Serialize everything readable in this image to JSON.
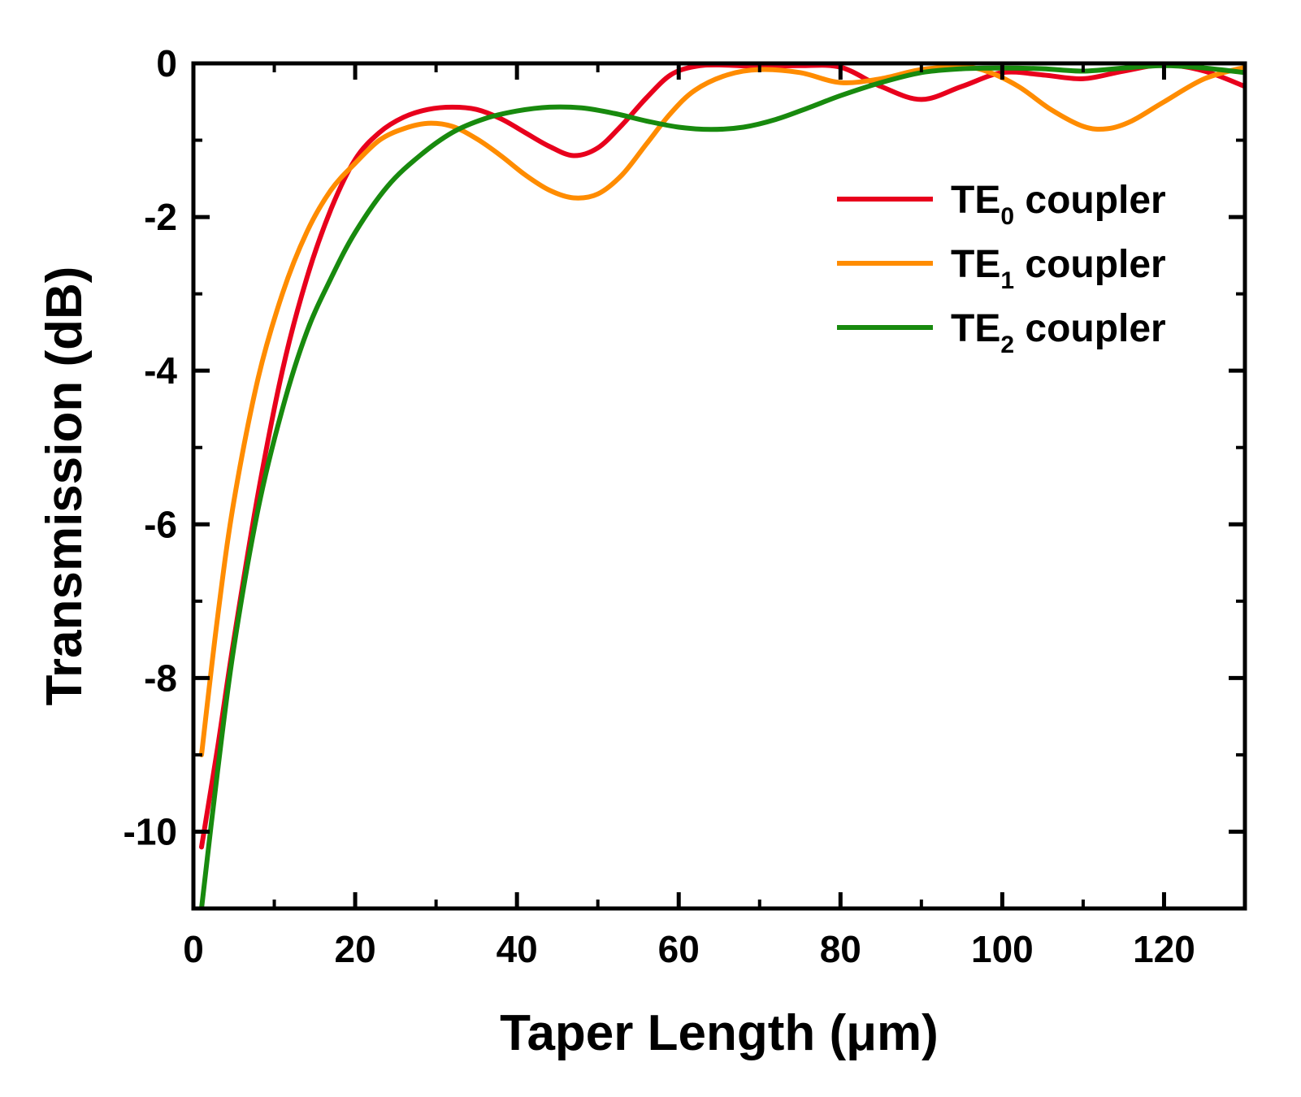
{
  "chart_data": {
    "type": "line",
    "xlabel": "Taper Length (μm)",
    "ylabel": "Transmission (dB)",
    "xlim": [
      0,
      130
    ],
    "ylim": [
      -11,
      0
    ],
    "xticks": [
      0,
      20,
      40,
      60,
      80,
      100,
      120
    ],
    "yticks": [
      0,
      -2,
      -4,
      -6,
      -8,
      -10
    ],
    "xtick_labels": [
      "0",
      "20",
      "40",
      "60",
      "80",
      "100",
      "120"
    ],
    "ytick_labels": [
      "0",
      "-2",
      "-4",
      "-6",
      "-8",
      "-10"
    ],
    "grid": false,
    "legend_position": "top-right",
    "series": [
      {
        "name": "TE0 coupler",
        "label_main": "TE",
        "label_sub": "0",
        "label_rest": " coupler",
        "color": "#e8001c",
        "x": [
          1,
          3,
          5,
          8,
          11,
          14,
          17,
          20,
          23,
          26,
          29,
          32,
          35,
          38,
          41,
          44,
          47,
          50,
          53,
          56,
          59,
          62,
          65,
          70,
          75,
          80,
          85,
          90,
          95,
          100,
          105,
          110,
          115,
          120,
          125,
          130
        ],
        "y": [
          -10.2,
          -8.9,
          -7.5,
          -5.6,
          -4.0,
          -2.8,
          -1.9,
          -1.25,
          -0.9,
          -0.7,
          -0.6,
          -0.57,
          -0.6,
          -0.72,
          -0.9,
          -1.08,
          -1.2,
          -1.1,
          -0.8,
          -0.45,
          -0.15,
          -0.04,
          -0.02,
          -0.04,
          -0.03,
          -0.05,
          -0.3,
          -0.47,
          -0.3,
          -0.12,
          -0.15,
          -0.2,
          -0.1,
          -0.02,
          -0.1,
          -0.3
        ]
      },
      {
        "name": "TE1 coupler",
        "label_main": "TE",
        "label_sub": "1",
        "label_rest": " coupler",
        "color": "#ff8c00",
        "x": [
          1,
          3,
          5,
          8,
          11,
          14,
          17,
          20,
          23,
          26,
          29,
          32,
          35,
          38,
          41,
          44,
          47,
          50,
          53,
          56,
          59,
          62,
          66,
          70,
          75,
          80,
          85,
          90,
          95,
          98,
          102,
          106,
          110,
          113,
          116,
          120,
          125,
          130
        ],
        "y": [
          -9.0,
          -7.2,
          -5.7,
          -4.1,
          -3.0,
          -2.2,
          -1.65,
          -1.3,
          -1.0,
          -0.85,
          -0.78,
          -0.82,
          -0.98,
          -1.2,
          -1.45,
          -1.65,
          -1.75,
          -1.7,
          -1.45,
          -1.05,
          -0.65,
          -0.35,
          -0.15,
          -0.08,
          -0.12,
          -0.25,
          -0.2,
          -0.08,
          -0.05,
          -0.1,
          -0.3,
          -0.6,
          -0.82,
          -0.85,
          -0.75,
          -0.5,
          -0.2,
          -0.05
        ]
      },
      {
        "name": "TE2 coupler",
        "label_main": "TE",
        "label_sub": "2",
        "label_rest": " coupler",
        "color": "#188a0e",
        "x": [
          1,
          3,
          5,
          8,
          11,
          14,
          17,
          20,
          24,
          28,
          32,
          36,
          40,
          44,
          48,
          52,
          56,
          60,
          64,
          68,
          72,
          76,
          80,
          85,
          90,
          95,
          100,
          105,
          110,
          115,
          120,
          125,
          130
        ],
        "y": [
          -11.0,
          -9.2,
          -7.6,
          -5.8,
          -4.5,
          -3.5,
          -2.8,
          -2.2,
          -1.6,
          -1.2,
          -0.9,
          -0.72,
          -0.62,
          -0.57,
          -0.58,
          -0.65,
          -0.75,
          -0.83,
          -0.86,
          -0.83,
          -0.73,
          -0.58,
          -0.42,
          -0.25,
          -0.12,
          -0.07,
          -0.06,
          -0.07,
          -0.1,
          -0.06,
          -0.03,
          -0.06,
          -0.12
        ]
      }
    ]
  }
}
